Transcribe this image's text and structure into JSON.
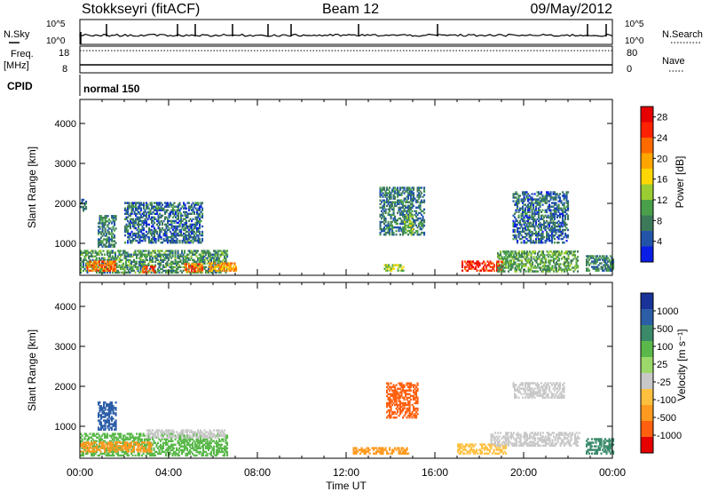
{
  "header": {
    "station": "Stokkseyri (fitACF)",
    "beam": "Beam 12",
    "date": "09/May/2012"
  },
  "status_panel": {
    "nsky_label": "N.Sky",
    "nsearch_label": "N.Search",
    "nsky_ticks": [
      "10^5",
      "10^0"
    ],
    "freq_label_1": "Freq.",
    "freq_label_2": "[MHz]",
    "freq_ticks": [
      "18",
      "8"
    ],
    "nave_label": "Nave",
    "nave_ticks": [
      "80",
      "0"
    ],
    "cpid_label": "CPID",
    "cpid_value": "normal 150"
  },
  "x_axis": {
    "label": "Time UT",
    "ticks": [
      "00:00",
      "04:00",
      "08:00",
      "12:00",
      "16:00",
      "20:00",
      "00:00"
    ],
    "tick_hours": [
      0,
      4,
      8,
      12,
      16,
      20,
      24
    ]
  },
  "colors": {
    "power_scale": [
      "#0a1ee6",
      "#2255aa",
      "#3d7a5a",
      "#4aa04a",
      "#9acd32",
      "#ffd700",
      "#ffa500",
      "#ff6a00",
      "#ff2200",
      "#e60000"
    ],
    "velocity_scale": [
      "#1a3399",
      "#2c5ea8",
      "#3a8a6a",
      "#5ab84a",
      "#9cd86a",
      "#c8c8c8",
      "#ffc040",
      "#ff9a20",
      "#ff6010",
      "#e60000"
    ]
  },
  "chart_data": [
    {
      "type": "heatmap",
      "name": "Power",
      "ylabel": "Slant Range [km]",
      "xlabel": "",
      "ylim": [
        200,
        4600
      ],
      "xlim_hours": [
        0,
        24
      ],
      "y_ticks": [
        1000,
        2000,
        3000,
        4000
      ],
      "colorbar": {
        "label": "Power [dB]",
        "ticks": [
          "4",
          "8",
          "12",
          "16",
          "20",
          "24",
          "28"
        ],
        "range": [
          0,
          30
        ]
      },
      "regions": [
        {
          "t0": 0.0,
          "t1": 6.6,
          "r0": 250,
          "r1": 800,
          "v": 9
        },
        {
          "t0": 0.3,
          "t1": 1.6,
          "r0": 300,
          "r1": 550,
          "v": 22
        },
        {
          "t0": 2.8,
          "t1": 3.4,
          "r0": 260,
          "r1": 420,
          "v": 24
        },
        {
          "t0": 4.7,
          "t1": 5.5,
          "r0": 280,
          "r1": 480,
          "v": 22
        },
        {
          "t0": 5.8,
          "t1": 7.0,
          "r0": 300,
          "r1": 520,
          "v": 20
        },
        {
          "t0": 0.8,
          "t1": 1.6,
          "r0": 900,
          "r1": 1700,
          "v": 8
        },
        {
          "t0": 0.0,
          "t1": 0.3,
          "r0": 1800,
          "r1": 2100,
          "v": 6
        },
        {
          "t0": 2.0,
          "t1": 5.5,
          "r0": 1000,
          "r1": 2000,
          "v": 6
        },
        {
          "t0": 13.7,
          "t1": 14.6,
          "r0": 300,
          "r1": 450,
          "v": 14
        },
        {
          "t0": 13.5,
          "t1": 15.5,
          "r0": 1200,
          "r1": 2400,
          "v": 7
        },
        {
          "t0": 14.6,
          "t1": 15.0,
          "r0": 1200,
          "r1": 1700,
          "v": 12
        },
        {
          "t0": 17.2,
          "t1": 19.0,
          "r0": 300,
          "r1": 550,
          "v": 26
        },
        {
          "t0": 18.8,
          "t1": 22.4,
          "r0": 280,
          "r1": 820,
          "v": 10
        },
        {
          "t0": 19.5,
          "t1": 22.0,
          "r0": 1000,
          "r1": 2300,
          "v": 6
        },
        {
          "t0": 22.8,
          "t1": 24.0,
          "r0": 300,
          "r1": 700,
          "v": 8
        }
      ]
    },
    {
      "type": "heatmap",
      "name": "Velocity",
      "ylabel": "Slant Range [km]",
      "xlabel": "Time UT",
      "ylim": [
        200,
        4600
      ],
      "xlim_hours": [
        0,
        24
      ],
      "y_ticks": [
        1000,
        2000,
        3000,
        4000
      ],
      "colorbar": {
        "label": "Velocity [m s⁻¹]",
        "ticks": [
          "1000",
          "500",
          "100",
          "25",
          "-25",
          "-100",
          "-500",
          "-1000"
        ]
      },
      "regions": [
        {
          "t0": 0.0,
          "t1": 6.6,
          "r0": 250,
          "r1": 800,
          "v": "#5ab84a"
        },
        {
          "t0": 0.0,
          "t1": 3.2,
          "r0": 350,
          "r1": 600,
          "v": "#ff9a20"
        },
        {
          "t0": 3.0,
          "t1": 6.5,
          "r0": 700,
          "r1": 900,
          "v": "#c8c8c8"
        },
        {
          "t0": 0.8,
          "t1": 1.6,
          "r0": 900,
          "r1": 1600,
          "v": "#2c5ea8"
        },
        {
          "t0": 13.8,
          "t1": 15.2,
          "r0": 1200,
          "r1": 2100,
          "v": "#ff6010"
        },
        {
          "t0": 12.3,
          "t1": 14.8,
          "r0": 300,
          "r1": 450,
          "v": "#ff9a20"
        },
        {
          "t0": 17.0,
          "t1": 19.2,
          "r0": 300,
          "r1": 550,
          "v": "#ffc040"
        },
        {
          "t0": 18.5,
          "t1": 22.5,
          "r0": 500,
          "r1": 850,
          "v": "#c8c8c8"
        },
        {
          "t0": 19.5,
          "t1": 21.8,
          "r0": 1700,
          "r1": 2100,
          "v": "#c8c8c8"
        },
        {
          "t0": 22.8,
          "t1": 24.0,
          "r0": 300,
          "r1": 700,
          "v": "#3a8a6a"
        }
      ]
    }
  ]
}
